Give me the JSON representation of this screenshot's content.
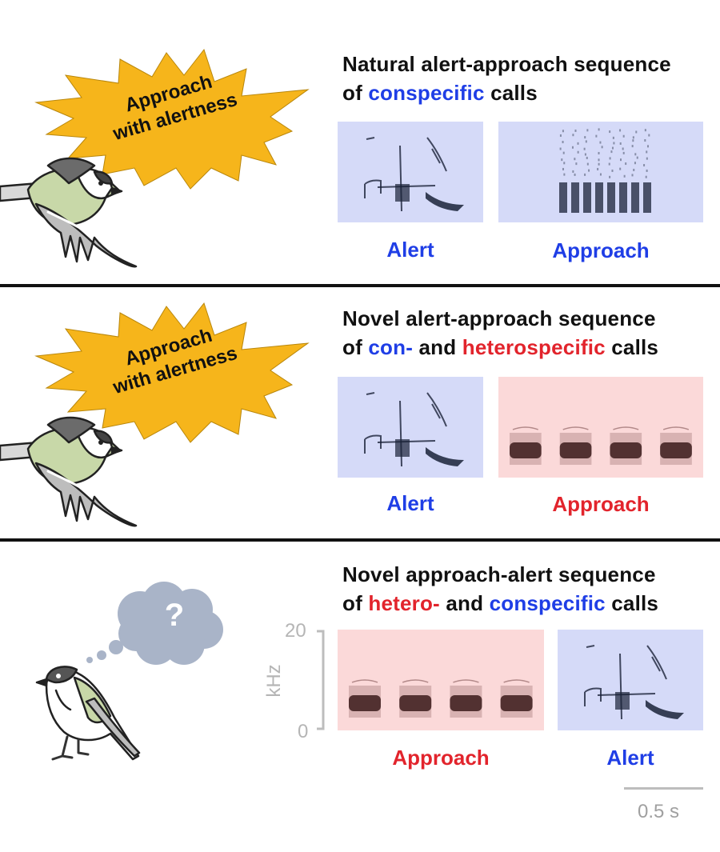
{
  "panels": [
    {
      "heading_line1": "Natural alert-approach sequence",
      "heading_line2_parts": [
        "of ",
        "conspecific",
        " calls"
      ],
      "burst_line1": "Approach",
      "burst_line2": "with alertness",
      "spectrograms": [
        {
          "label": "Alert",
          "species": "conspecific",
          "call": "alert"
        },
        {
          "label": "Approach",
          "species": "conspecific",
          "call": "approach"
        }
      ]
    },
    {
      "heading_line1": "Novel alert-approach sequence",
      "heading_line2_parts": [
        "of ",
        "con-",
        " and ",
        "heterospecific",
        " calls"
      ],
      "burst_line1": "Approach",
      "burst_line2": "with alertness",
      "spectrograms": [
        {
          "label": "Alert",
          "species": "conspecific",
          "call": "alert"
        },
        {
          "label": "Approach",
          "species": "heterospecific",
          "call": "approach"
        }
      ]
    },
    {
      "heading_line1": "Novel approach-alert sequence",
      "heading_line2_parts": [
        "of ",
        "hetero-",
        " and ",
        "conspecific",
        " calls"
      ],
      "thought_symbol": "?",
      "spectrograms": [
        {
          "label": "Approach",
          "species": "heterospecific",
          "call": "approach"
        },
        {
          "label": "Alert",
          "species": "conspecific",
          "call": "alert"
        }
      ]
    }
  ],
  "axis": {
    "ymax": "20",
    "ymin": "0",
    "unit": "kHz"
  },
  "time_scale": {
    "label": "0.5 s",
    "seconds": 0.5
  },
  "colors": {
    "conspecific": "#1f3ee6",
    "heterospecific": "#e2242c",
    "conspecific_bg": "#d5daf8",
    "heterospecific_bg": "#fbd9d9",
    "burst_fill": "#f6b51b",
    "cloud_fill": "#a9b4c8"
  }
}
